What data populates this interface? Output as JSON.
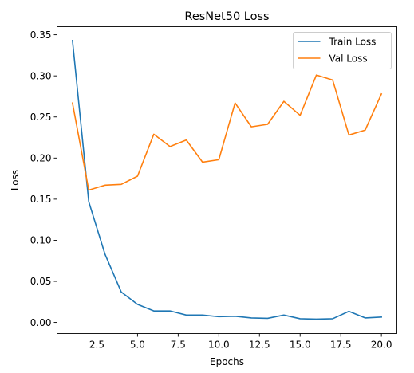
{
  "chart_data": {
    "type": "line",
    "title": "ResNet50 Loss",
    "xlabel": "Epochs",
    "ylabel": "Loss",
    "x": [
      1,
      2,
      3,
      4,
      5,
      6,
      7,
      8,
      9,
      10,
      11,
      12,
      13,
      14,
      15,
      16,
      17,
      18,
      19,
      20
    ],
    "xlim": [
      0.05,
      20.95
    ],
    "ylim": [
      -0.0135,
      0.3598
    ],
    "xticks": [
      2.5,
      5.0,
      7.5,
      10.0,
      12.5,
      15.0,
      17.5,
      20.0
    ],
    "xtick_labels": [
      "2.5",
      "5.0",
      "7.5",
      "10.0",
      "12.5",
      "15.0",
      "17.5",
      "20.0"
    ],
    "yticks": [
      0.0,
      0.05,
      0.1,
      0.15,
      0.2,
      0.25,
      0.3,
      0.35
    ],
    "ytick_labels": [
      "0.00",
      "0.05",
      "0.10",
      "0.15",
      "0.20",
      "0.25",
      "0.30",
      "0.35"
    ],
    "grid": false,
    "legend_position": "top-right",
    "series": [
      {
        "name": "Train Loss",
        "color": "#1f77b4",
        "values": [
          0.343,
          0.147,
          0.083,
          0.037,
          0.022,
          0.014,
          0.014,
          0.009,
          0.009,
          0.007,
          0.0075,
          0.0055,
          0.005,
          0.009,
          0.0045,
          0.004,
          0.0045,
          0.0135,
          0.0055,
          0.0065
        ]
      },
      {
        "name": "Val Loss",
        "color": "#ff7f0e",
        "values": [
          0.267,
          0.161,
          0.167,
          0.168,
          0.178,
          0.229,
          0.214,
          0.222,
          0.195,
          0.198,
          0.267,
          0.238,
          0.241,
          0.269,
          0.252,
          0.301,
          0.295,
          0.228,
          0.234,
          0.278
        ]
      }
    ]
  }
}
